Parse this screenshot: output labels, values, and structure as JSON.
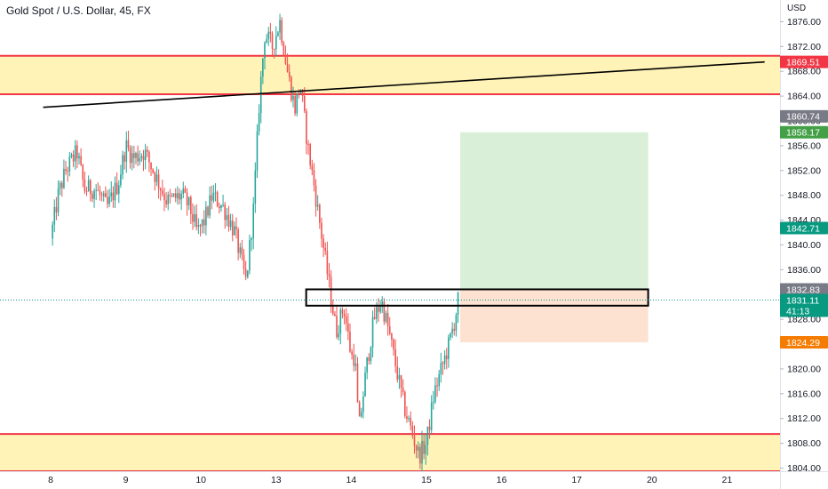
{
  "header": {
    "title": "Gold Spot / U.S. Dollar, 45, FX"
  },
  "colors": {
    "up": "#26a69a",
    "down": "#ef5350",
    "zone_fill": "#fff3b8",
    "zone_line": "#f23645",
    "trendline": "#000000",
    "target_fill": "#d9efd7",
    "stop_fill": "#fde2d2",
    "badge_red": "#f23645",
    "badge_gray": "#787b86",
    "badge_green": "#43a047",
    "badge_teal": "#089981",
    "badge_orange": "#f57c00"
  },
  "chart_data": {
    "type": "candlestick",
    "title": "Gold Spot / U.S. Dollar, 45, FX",
    "y_axis_unit": "USD",
    "ylim": [
      1803.5,
      1879.5
    ],
    "y_ticks": [
      1876,
      1872,
      1868,
      1864,
      1860,
      1856,
      1852,
      1848,
      1844,
      1840,
      1836,
      1832,
      1828,
      1824,
      1820,
      1816,
      1812,
      1808,
      1804
    ],
    "x_ticks": [
      {
        "label": "8",
        "day": 1
      },
      {
        "label": "9",
        "day": 2
      },
      {
        "label": "10",
        "day": 3
      },
      {
        "label": "13",
        "day": 4
      },
      {
        "label": "14",
        "day": 5
      },
      {
        "label": "15",
        "day": 6
      },
      {
        "label": "16",
        "day": 7
      },
      {
        "label": "17",
        "day": 8
      },
      {
        "label": "20",
        "day": 9
      },
      {
        "label": "21",
        "day": 10
      }
    ],
    "price_path": [
      [
        0.0,
        1841
      ],
      [
        0.1,
        1848
      ],
      [
        0.2,
        1852
      ],
      [
        0.35,
        1855
      ],
      [
        0.45,
        1849
      ],
      [
        0.6,
        1849
      ],
      [
        0.75,
        1846
      ],
      [
        0.9,
        1850
      ],
      [
        1.0,
        1856
      ],
      [
        1.1,
        1854
      ],
      [
        1.25,
        1855
      ],
      [
        1.4,
        1851
      ],
      [
        1.55,
        1847
      ],
      [
        1.75,
        1848
      ],
      [
        1.85,
        1846
      ],
      [
        1.95,
        1842
      ],
      [
        2.05,
        1844
      ],
      [
        2.15,
        1848
      ],
      [
        2.3,
        1846
      ],
      [
        2.45,
        1842
      ],
      [
        2.6,
        1834
      ],
      [
        2.7,
        1846
      ],
      [
        2.78,
        1864
      ],
      [
        2.85,
        1874
      ],
      [
        2.95,
        1872
      ],
      [
        3.05,
        1876
      ],
      [
        3.15,
        1868
      ],
      [
        3.25,
        1862
      ],
      [
        3.32,
        1866
      ],
      [
        3.42,
        1856
      ],
      [
        3.5,
        1850
      ],
      [
        3.6,
        1842
      ],
      [
        3.7,
        1834
      ],
      [
        3.8,
        1826
      ],
      [
        3.9,
        1830
      ],
      [
        4.0,
        1822
      ],
      [
        4.05,
        1822
      ],
      [
        4.1,
        1810
      ],
      [
        4.2,
        1820
      ],
      [
        4.3,
        1828
      ],
      [
        4.4,
        1831
      ],
      [
        4.5,
        1826
      ],
      [
        4.6,
        1820
      ],
      [
        4.7,
        1814
      ],
      [
        4.8,
        1810
      ],
      [
        4.9,
        1806
      ],
      [
        5.0,
        1808
      ],
      [
        5.1,
        1816
      ],
      [
        5.2,
        1820
      ],
      [
        5.3,
        1824
      ],
      [
        5.38,
        1828
      ],
      [
        5.42,
        1831
      ]
    ],
    "horizontal_zones": [
      {
        "top": 1870.5,
        "bottom": 1864.3,
        "fill": "#fff3b8"
      },
      {
        "top": 1809.5,
        "bottom": 1803.5,
        "fill": "#fff3b8"
      }
    ],
    "trendline": {
      "from": [
        -0.1,
        1862.2
      ],
      "to": [
        9.5,
        1869.51
      ]
    },
    "entry_box": {
      "start": 3.4,
      "end": 7.95,
      "top": 1832.83,
      "bottom": 1830.2
    },
    "long_position": {
      "start": 5.45,
      "end": 7.95,
      "entry": 1832.83,
      "target": 1858.17,
      "stop": 1824.29
    },
    "current_price_line": 1831.11,
    "price_badges": [
      {
        "value": 1869.51,
        "label": "1869.51",
        "color": "#f23645"
      },
      {
        "value": 1860.74,
        "label": "1860.74",
        "color": "#787b86"
      },
      {
        "value": 1858.17,
        "label": "1858.17",
        "color": "#43a047"
      },
      {
        "value": 1842.71,
        "label": "1842.71",
        "color": "#089981"
      },
      {
        "value": 1832.83,
        "label": "1832.83",
        "color": "#787b86"
      },
      {
        "value": 1831.11,
        "label": "1831.11",
        "sub": "41:13",
        "color": "#089981"
      },
      {
        "value": 1824.29,
        "label": "1824.29",
        "color": "#f57c00"
      }
    ]
  }
}
